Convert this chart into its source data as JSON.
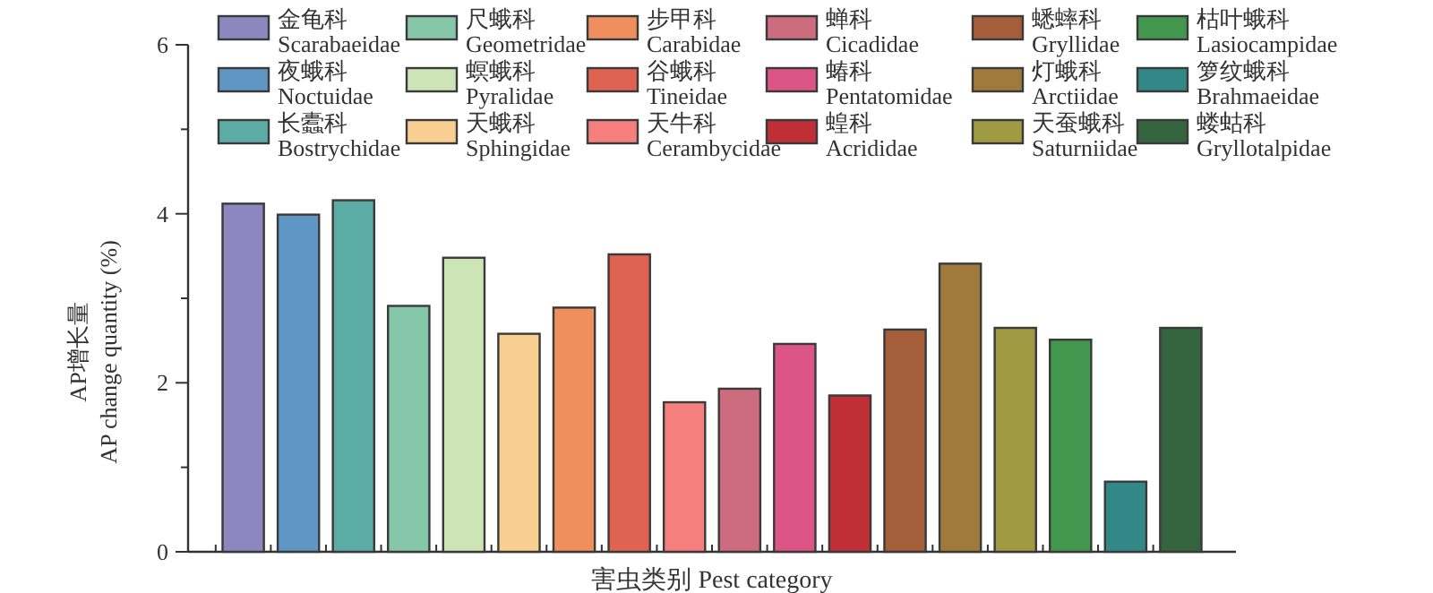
{
  "chart_data": {
    "type": "bar",
    "xlabel": "害虫类别 Pest category",
    "ylabel": "AP增长量\nAP change quantity (%)",
    "categories": [
      null,
      null,
      null,
      null,
      null,
      null,
      null,
      null,
      null,
      null,
      null,
      null,
      null,
      null,
      null,
      null,
      null,
      null
    ],
    "ylim": [
      0,
      6
    ],
    "yticks": [
      0,
      {
        "value": 1,
        "label": null
      },
      2,
      {
        "value": 3,
        "label": null
      },
      4,
      {
        "value": 5,
        "label": null
      },
      6
    ],
    "legend": "top",
    "series": [
      {
        "name": "金龟科\nScarabaeidae",
        "color": "#8e87bf",
        "values": [
          4.12,
          null,
          null,
          null,
          null,
          null,
          null,
          null,
          null,
          null,
          null,
          null,
          null,
          null,
          null,
          null,
          null,
          null
        ]
      },
      {
        "name": "夜蛾科\nNoctuidae",
        "color": "#6096c4",
        "values": [
          null,
          3.99,
          null,
          null,
          null,
          null,
          null,
          null,
          null,
          null,
          null,
          null,
          null,
          null,
          null,
          null,
          null,
          null
        ]
      },
      {
        "name": "长蠹科\nBostrychidae",
        "color": "#5aaca5",
        "values": [
          null,
          null,
          4.16,
          null,
          null,
          null,
          null,
          null,
          null,
          null,
          null,
          null,
          null,
          null,
          null,
          null,
          null,
          null
        ]
      },
      {
        "name": "尺蛾科\nGeometridae",
        "color": "#86c7a9",
        "values": [
          null,
          null,
          null,
          2.91,
          null,
          null,
          null,
          null,
          null,
          null,
          null,
          null,
          null,
          null,
          null,
          null,
          null,
          null
        ]
      },
      {
        "name": "螟蛾科\nPyralidae",
        "color": "#cde5b6",
        "values": [
          null,
          null,
          null,
          null,
          3.48,
          null,
          null,
          null,
          null,
          null,
          null,
          null,
          null,
          null,
          null,
          null,
          null,
          null
        ]
      },
      {
        "name": "天蛾科\nSphingidae",
        "color": "#f8ce91",
        "values": [
          null,
          null,
          null,
          null,
          null,
          2.58,
          null,
          null,
          null,
          null,
          null,
          null,
          null,
          null,
          null,
          null,
          null,
          null
        ]
      },
      {
        "name": "步甲科\nCarabidae",
        "color": "#ef8f5e",
        "values": [
          null,
          null,
          null,
          null,
          null,
          null,
          2.89,
          null,
          null,
          null,
          null,
          null,
          null,
          null,
          null,
          null,
          null,
          null
        ]
      },
      {
        "name": "谷蛾科\nTineidae",
        "color": "#e06352",
        "values": [
          null,
          null,
          null,
          null,
          null,
          null,
          null,
          3.52,
          null,
          null,
          null,
          null,
          null,
          null,
          null,
          null,
          null,
          null
        ]
      },
      {
        "name": "天牛科\nCerambycidae",
        "color": "#f57f7c",
        "values": [
          null,
          null,
          null,
          null,
          null,
          null,
          null,
          null,
          1.77,
          null,
          null,
          null,
          null,
          null,
          null,
          null,
          null,
          null
        ]
      },
      {
        "name": "蝉科\nCicadidae",
        "color": "#cd6c7e",
        "values": [
          null,
          null,
          null,
          null,
          null,
          null,
          null,
          null,
          null,
          1.93,
          null,
          null,
          null,
          null,
          null,
          null,
          null,
          null
        ]
      },
      {
        "name": "蝽科\nPentatomidae",
        "color": "#dc5584",
        "values": [
          null,
          null,
          null,
          null,
          null,
          null,
          null,
          null,
          null,
          null,
          2.46,
          null,
          null,
          null,
          null,
          null,
          null,
          null
        ]
      },
      {
        "name": "蝗科\nAcrididae",
        "color": "#c02f35",
        "values": [
          null,
          null,
          null,
          null,
          null,
          null,
          null,
          null,
          null,
          null,
          null,
          1.85,
          null,
          null,
          null,
          null,
          null,
          null
        ]
      },
      {
        "name": "蟋蟀科\nGryllidae",
        "color": "#a45e3a",
        "values": [
          null,
          null,
          null,
          null,
          null,
          null,
          null,
          null,
          null,
          null,
          null,
          null,
          2.63,
          null,
          null,
          null,
          null,
          null
        ]
      },
      {
        "name": "灯蛾科\nArctiidae",
        "color": "#a07a3c",
        "values": [
          null,
          null,
          null,
          null,
          null,
          null,
          null,
          null,
          null,
          null,
          null,
          null,
          null,
          3.41,
          null,
          null,
          null,
          null
        ]
      },
      {
        "name": "天蚕蛾科\nSaturniidae",
        "color": "#a09a42",
        "values": [
          null,
          null,
          null,
          null,
          null,
          null,
          null,
          null,
          null,
          null,
          null,
          null,
          null,
          null,
          2.65,
          null,
          null,
          null
        ]
      },
      {
        "name": "枯叶蛾科\nLasiocampidae",
        "color": "#43964d",
        "values": [
          null,
          null,
          null,
          null,
          null,
          null,
          null,
          null,
          null,
          null,
          null,
          null,
          null,
          null,
          null,
          2.51,
          null,
          null
        ]
      },
      {
        "name": "箩纹蛾科\nBrahmaeidae",
        "color": "#318886",
        "values": [
          null,
          null,
          null,
          null,
          null,
          null,
          null,
          null,
          null,
          null,
          null,
          null,
          null,
          null,
          null,
          null,
          0.83,
          null
        ]
      },
      {
        "name": "蝼蛄科\nGryllotalpidae",
        "color": "#33643e",
        "values": [
          null,
          null,
          null,
          null,
          null,
          null,
          null,
          null,
          null,
          null,
          null,
          null,
          null,
          null,
          null,
          null,
          null,
          2.65
        ]
      }
    ]
  }
}
